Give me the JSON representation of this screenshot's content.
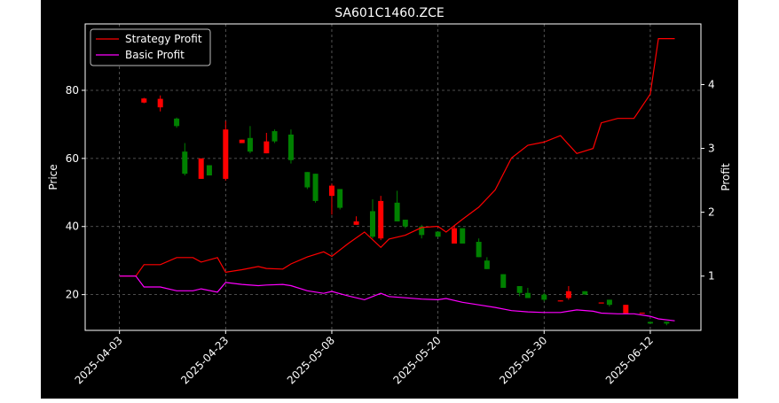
{
  "chart_data": {
    "type": "candlestick",
    "title": "SA601C1460.ZCE",
    "xlabel": "",
    "ylabel": "Price",
    "y2label": "Profit",
    "x_tick_labels": [
      "2025-04-03",
      "2025-04-23",
      "2025-05-08",
      "2025-05-20",
      "2025-05-30",
      "2025-06-12"
    ],
    "x_tick_index": [
      0,
      13,
      26,
      39,
      52,
      65
    ],
    "ylim": [
      9.5,
      99.5
    ],
    "yticks": [
      20,
      40,
      60,
      80
    ],
    "y2lim": [
      0.15,
      4.95
    ],
    "y2ticks": [
      1,
      2,
      3,
      4
    ],
    "grid": true,
    "legend": {
      "placement": "upper-left",
      "entries": [
        {
          "label": "Strategy Profit",
          "color": "#ff0000"
        },
        {
          "label": "Basic Profit",
          "color": "#ff00ff"
        }
      ]
    },
    "colors": {
      "up": "#ff0000",
      "down": "#008000",
      "strategy": "#ff0000",
      "basic": "#ff00ff",
      "background": "#000000",
      "axes": "#ffffff",
      "grid": "#808080"
    },
    "candles": [
      {
        "i": 3,
        "o": 76.4,
        "c": 77.6,
        "h": 77.8,
        "l": 76.2
      },
      {
        "i": 5,
        "o": 75.0,
        "c": 77.5,
        "h": 78.5,
        "l": 73.8
      },
      {
        "i": 7,
        "o": 71.7,
        "c": 69.5,
        "h": 72.0,
        "l": 69.0
      },
      {
        "i": 8,
        "o": 62.0,
        "c": 55.5,
        "h": 64.5,
        "l": 55.0
      },
      {
        "i": 10,
        "o": 54.0,
        "c": 60.0,
        "h": 60.0,
        "l": 54.0
      },
      {
        "i": 11,
        "o": 58.0,
        "c": 55.0,
        "h": 58.0,
        "l": 55.0
      },
      {
        "i": 13,
        "o": 54.0,
        "c": 68.5,
        "h": 71.0,
        "l": 53.5
      },
      {
        "i": 15,
        "o": 64.5,
        "c": 65.5,
        "h": 65.5,
        "l": 64.5
      },
      {
        "i": 16,
        "o": 66.0,
        "c": 62.0,
        "h": 69.5,
        "l": 61.5
      },
      {
        "i": 18,
        "o": 61.5,
        "c": 65.0,
        "h": 67.5,
        "l": 61.5
      },
      {
        "i": 19,
        "o": 68.0,
        "c": 65.0,
        "h": 68.5,
        "l": 64.5
      },
      {
        "i": 21,
        "o": 67.0,
        "c": 59.5,
        "h": 68.5,
        "l": 58.5
      },
      {
        "i": 23,
        "o": 56.0,
        "c": 51.5,
        "h": 56.0,
        "l": 51.0
      },
      {
        "i": 24,
        "o": 55.5,
        "c": 47.5,
        "h": 55.5,
        "l": 47.0
      },
      {
        "i": 26,
        "o": 49.0,
        "c": 52.0,
        "h": 52.5,
        "l": 43.5
      },
      {
        "i": 27,
        "o": 51.0,
        "c": 45.5,
        "h": 51.0,
        "l": 45.0
      },
      {
        "i": 29,
        "o": 40.5,
        "c": 41.5,
        "h": 43.0,
        "l": 40.5
      },
      {
        "i": 31,
        "o": 44.5,
        "c": 37.0,
        "h": 48.0,
        "l": 36.5
      },
      {
        "i": 32,
        "o": 36.5,
        "c": 47.5,
        "h": 49.0,
        "l": 36.0
      },
      {
        "i": 34,
        "o": 47.0,
        "c": 41.5,
        "h": 50.5,
        "l": 41.5
      },
      {
        "i": 35,
        "o": 42.0,
        "c": 40.0,
        "h": 42.0,
        "l": 39.5
      },
      {
        "i": 37,
        "o": 40.0,
        "c": 37.5,
        "h": 40.5,
        "l": 36.5
      },
      {
        "i": 39,
        "o": 38.5,
        "c": 37.0,
        "h": 38.5,
        "l": 37.0
      },
      {
        "i": 41,
        "o": 35.0,
        "c": 39.5,
        "h": 40.0,
        "l": 35.0
      },
      {
        "i": 42,
        "o": 39.5,
        "c": 35.0,
        "h": 39.5,
        "l": 35.0
      },
      {
        "i": 44,
        "o": 35.5,
        "c": 31.0,
        "h": 36.5,
        "l": 31.0
      },
      {
        "i": 45,
        "o": 30.0,
        "c": 27.5,
        "h": 31.0,
        "l": 27.5
      },
      {
        "i": 47,
        "o": 26.0,
        "c": 22.0,
        "h": 26.0,
        "l": 22.0
      },
      {
        "i": 49,
        "o": 22.5,
        "c": 20.5,
        "h": 22.5,
        "l": 19.5
      },
      {
        "i": 50,
        "o": 20.5,
        "c": 19.0,
        "h": 22.0,
        "l": 19.0
      },
      {
        "i": 52,
        "o": 20.0,
        "c": 18.5,
        "h": 20.5,
        "l": 18.0
      },
      {
        "i": 54,
        "o": 18.0,
        "c": 18.3,
        "h": 18.3,
        "l": 18.0
      },
      {
        "i": 55,
        "o": 19.0,
        "c": 21.0,
        "h": 22.5,
        "l": 18.5
      },
      {
        "i": 57,
        "o": 21.0,
        "c": 20.0,
        "h": 21.0,
        "l": 20.0
      },
      {
        "i": 59,
        "o": 17.5,
        "c": 17.7,
        "h": 17.7,
        "l": 17.5
      },
      {
        "i": 60,
        "o": 18.5,
        "c": 17.0,
        "h": 18.5,
        "l": 16.5
      },
      {
        "i": 62,
        "o": 14.5,
        "c": 17.0,
        "h": 17.0,
        "l": 14.5
      },
      {
        "i": 64,
        "o": 14.5,
        "c": 14.7,
        "h": 14.7,
        "l": 14.5
      },
      {
        "i": 65,
        "o": 12.0,
        "c": 11.5,
        "h": 12.0,
        "l": 11.5
      },
      {
        "i": 67,
        "o": 12.0,
        "c": 11.5,
        "h": 12.0,
        "l": 11.0
      }
    ],
    "series": [
      {
        "name": "Strategy Profit",
        "axis": "right",
        "points": [
          [
            0,
            1.0
          ],
          [
            2,
            1.0
          ],
          [
            3,
            1.18
          ],
          [
            5,
            1.18
          ],
          [
            7,
            1.29
          ],
          [
            9,
            1.29
          ],
          [
            10,
            1.22
          ],
          [
            12,
            1.29
          ],
          [
            13,
            1.06
          ],
          [
            15,
            1.1
          ],
          [
            17,
            1.15
          ],
          [
            18,
            1.12
          ],
          [
            20,
            1.11
          ],
          [
            21,
            1.19
          ],
          [
            23,
            1.3
          ],
          [
            25,
            1.38
          ],
          [
            26,
            1.31
          ],
          [
            28,
            1.51
          ],
          [
            30,
            1.69
          ],
          [
            32,
            1.45
          ],
          [
            33,
            1.58
          ],
          [
            35,
            1.64
          ],
          [
            37,
            1.76
          ],
          [
            39,
            1.78
          ],
          [
            40,
            1.69
          ],
          [
            42,
            1.89
          ],
          [
            44,
            2.08
          ],
          [
            46,
            2.35
          ],
          [
            48,
            2.85
          ],
          [
            50,
            3.05
          ],
          [
            52,
            3.1
          ],
          [
            54,
            3.2
          ],
          [
            56,
            2.92
          ],
          [
            58,
            3.0
          ],
          [
            59,
            3.4
          ],
          [
            61,
            3.47
          ],
          [
            63,
            3.47
          ],
          [
            65,
            3.85
          ],
          [
            66,
            4.72
          ],
          [
            68,
            4.72
          ]
        ]
      },
      {
        "name": "Basic Profit",
        "axis": "right",
        "points": [
          [
            0,
            1.0
          ],
          [
            2,
            1.0
          ],
          [
            3,
            0.83
          ],
          [
            5,
            0.83
          ],
          [
            7,
            0.77
          ],
          [
            9,
            0.77
          ],
          [
            10,
            0.8
          ],
          [
            12,
            0.75
          ],
          [
            13,
            0.9
          ],
          [
            15,
            0.87
          ],
          [
            17,
            0.85
          ],
          [
            18,
            0.86
          ],
          [
            20,
            0.87
          ],
          [
            21,
            0.85
          ],
          [
            23,
            0.77
          ],
          [
            25,
            0.73
          ],
          [
            26,
            0.76
          ],
          [
            28,
            0.69
          ],
          [
            30,
            0.63
          ],
          [
            32,
            0.73
          ],
          [
            33,
            0.68
          ],
          [
            35,
            0.66
          ],
          [
            37,
            0.64
          ],
          [
            39,
            0.63
          ],
          [
            40,
            0.65
          ],
          [
            42,
            0.59
          ],
          [
            44,
            0.55
          ],
          [
            46,
            0.51
          ],
          [
            48,
            0.46
          ],
          [
            50,
            0.44
          ],
          [
            52,
            0.43
          ],
          [
            54,
            0.43
          ],
          [
            56,
            0.47
          ],
          [
            58,
            0.45
          ],
          [
            59,
            0.42
          ],
          [
            61,
            0.41
          ],
          [
            63,
            0.41
          ],
          [
            65,
            0.37
          ],
          [
            66,
            0.33
          ],
          [
            68,
            0.3
          ]
        ]
      }
    ]
  }
}
